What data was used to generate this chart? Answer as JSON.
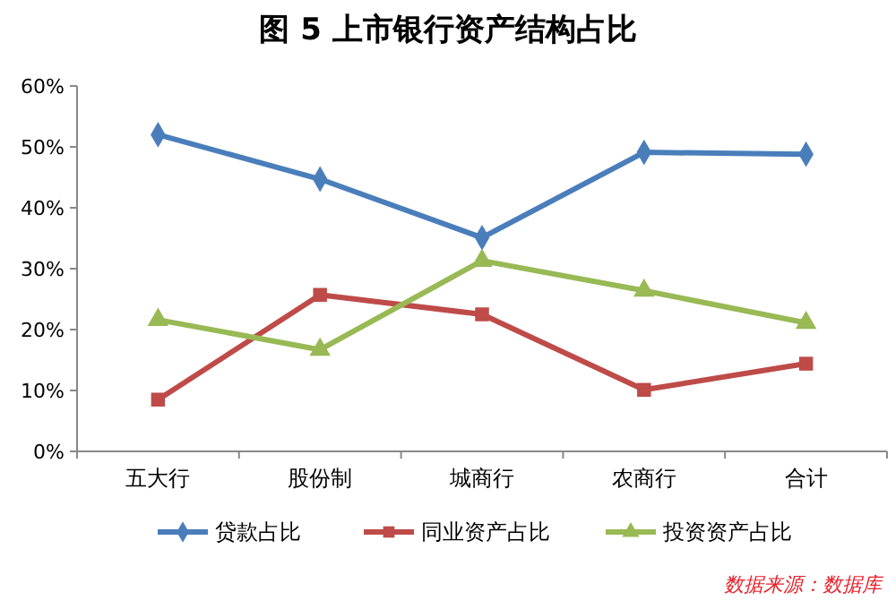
{
  "chart_data": {
    "type": "line",
    "title": "图 5 上市银行资产结构占比",
    "categories": [
      "五大行",
      "股份制",
      "城商行",
      "农商行",
      "合计"
    ],
    "series": [
      {
        "name": "贷款占比",
        "color": "#4a7ebb",
        "marker": "diamond",
        "values": [
          52,
          44.7,
          35.1,
          49.1,
          48.8
        ]
      },
      {
        "name": "同业资产占比",
        "color": "#be4b48",
        "marker": "square",
        "values": [
          8.5,
          25.7,
          22.5,
          10.1,
          14.4
        ]
      },
      {
        "name": "投资资产占比",
        "color": "#98b954",
        "marker": "triangle",
        "values": [
          21.6,
          16.7,
          31.3,
          26.4,
          21.1
        ]
      }
    ],
    "ylim": [
      0,
      60
    ],
    "yticks": [
      {
        "value": 0,
        "label": "0%"
      },
      {
        "value": 10,
        "label": "10%"
      },
      {
        "value": 20,
        "label": "20%"
      },
      {
        "value": 30,
        "label": "30%"
      },
      {
        "value": 40,
        "label": "40%"
      },
      {
        "value": 50,
        "label": "50%"
      },
      {
        "value": 60,
        "label": "60%"
      }
    ],
    "grid": false,
    "legend": "bottom",
    "line_style": "solid",
    "annotations": [
      "数据来源：数据库"
    ]
  }
}
